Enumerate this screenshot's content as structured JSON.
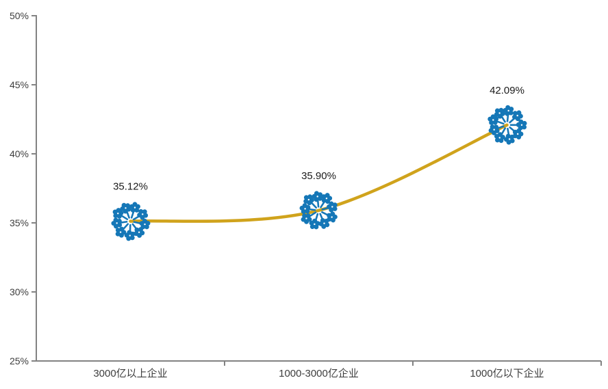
{
  "chart_data": {
    "type": "line",
    "title": "",
    "xlabel": "",
    "ylabel": "",
    "categories": [
      "3000亿以上企业",
      "1000-3000亿企业",
      "1000亿以下企业"
    ],
    "series": [
      {
        "name": "",
        "values": [
          35.12,
          35.9,
          42.09
        ]
      }
    ],
    "data_labels": [
      "35.12%",
      "35.90%",
      "42.09%"
    ],
    "ylim": [
      25,
      50
    ],
    "ytick_interval": 5,
    "ytick_labels": [
      "25%",
      "30%",
      "35%",
      "40%",
      "45%",
      "50%"
    ],
    "grid": false,
    "legend": "none",
    "smooth": true,
    "marker_style": "flower-cluster",
    "colors": {
      "line": "#d0a31c",
      "marker_flower": "#1577b7",
      "marker_dot": "#ffffff",
      "axis": "#828282",
      "tick_label": "#3d3d3d",
      "data_label": "#1a1a1a",
      "background": "#ffffff"
    }
  }
}
